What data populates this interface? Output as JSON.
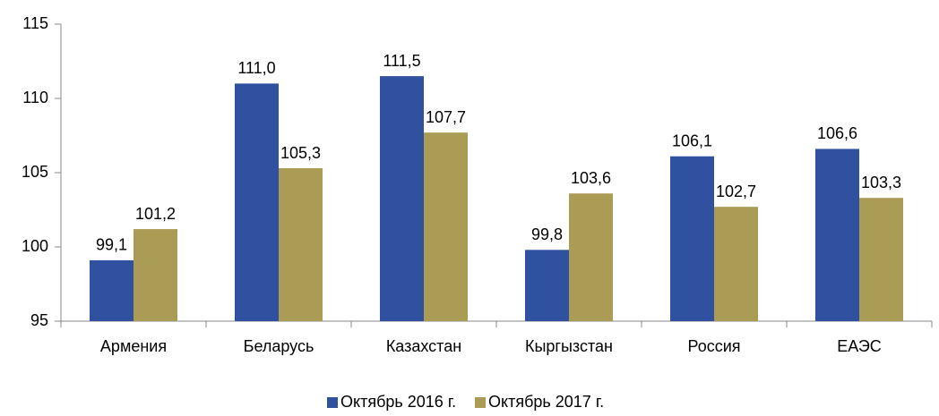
{
  "chart_data": {
    "type": "bar",
    "categories": [
      "Армения",
      "Беларусь",
      "Казахстан",
      "Кыргызстан",
      "Россия",
      "ЕАЭС"
    ],
    "series": [
      {
        "name": "Октябрь 2016 г.",
        "color": "#3050a0",
        "values": [
          99.1,
          111.0,
          111.5,
          99.8,
          106.1,
          106.6
        ],
        "value_labels": [
          "99,1",
          "111,0",
          "111,5",
          "99,8",
          "106,1",
          "106,6"
        ]
      },
      {
        "name": "Октябрь 2017 г.",
        "color": "#aa9b55",
        "values": [
          101.2,
          105.3,
          107.7,
          103.6,
          102.7,
          103.3
        ],
        "value_labels": [
          "101,2",
          "105,3",
          "107,7",
          "103,6",
          "102,7",
          "103,3"
        ]
      }
    ],
    "ylim": [
      95,
      115
    ],
    "yticks": [
      95,
      100,
      105,
      110,
      115
    ],
    "grid": false,
    "legend": "bottom"
  }
}
